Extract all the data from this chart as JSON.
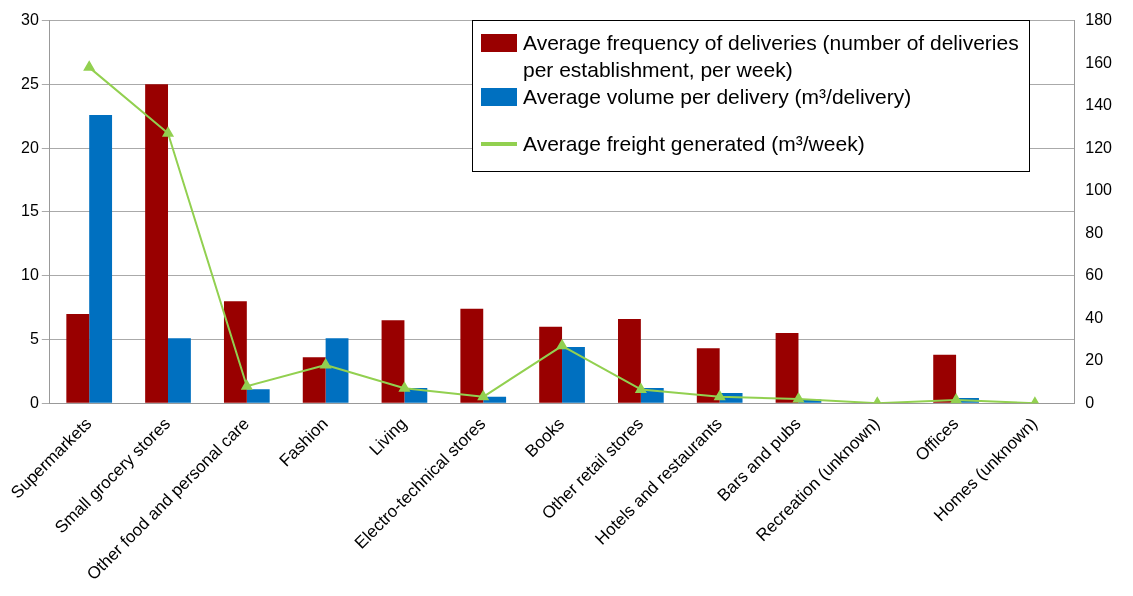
{
  "chart_data": {
    "type": "bar",
    "categories": [
      "Supermarkets",
      "Small grocery stores",
      "Other food and personal care",
      "Fashion",
      "Living",
      "Electro-technical stores",
      "Books",
      "Other retail stores",
      "Hotels and restaurants",
      "Bars and pubs",
      "Recreation (unknown)",
      "Offices",
      "Homes (unknown)"
    ],
    "series": [
      {
        "name": "Average frequency of deliveries (number of deliveries per establishment, per week)",
        "color": "#990000",
        "values": [
          7,
          25,
          8,
          3.6,
          6.5,
          7.4,
          6.0,
          6.6,
          4.3,
          5.5,
          null,
          3.8,
          null
        ]
      },
      {
        "name": "Average volume per delivery (m³/delivery)",
        "color": "#0070c0",
        "values": [
          22.6,
          5.1,
          1.1,
          5.1,
          1.2,
          0.5,
          4.4,
          1.2,
          0.8,
          0.3,
          null,
          0.4,
          null
        ]
      },
      {
        "name": "Average freight generated (m³/week)",
        "type": "line",
        "axis": "y2",
        "color": "#92d050",
        "marker": "triangle",
        "values": [
          158,
          127,
          8,
          18,
          7,
          3,
          27,
          6.5,
          3,
          2,
          0,
          1.5,
          0
        ]
      }
    ],
    "ylim": [
      0,
      30
    ],
    "yticks": [
      0,
      5,
      10,
      15,
      20,
      25,
      30
    ],
    "y2lim": [
      0,
      180
    ],
    "y2ticks": [
      0,
      20,
      40,
      60,
      80,
      100,
      120,
      140,
      160,
      180
    ],
    "grid": "y",
    "legend": "top right"
  }
}
